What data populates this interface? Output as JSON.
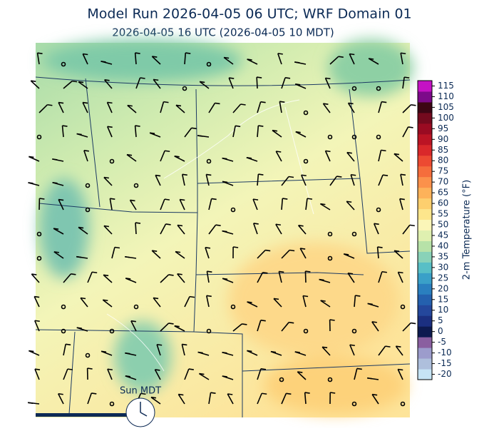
{
  "header": {
    "title": "Model Run 2026-04-05 06 UTC; WRF Domain 01",
    "subtitle": "2026-04-05 16 UTC  (2026-04-05 10 MDT)"
  },
  "colorbar": {
    "label": "2-m Temperature (°F)",
    "ticks": [
      -20,
      -15,
      -10,
      -5,
      0,
      5,
      10,
      15,
      20,
      25,
      30,
      35,
      40,
      45,
      50,
      55,
      60,
      65,
      70,
      75,
      80,
      85,
      90,
      95,
      100,
      105,
      110,
      115
    ],
    "colors": [
      "#c6e4f5",
      "#aebfdc",
      "#9c9ccc",
      "#8a5fa0",
      "#0d1a4f",
      "#1b2f80",
      "#24479c",
      "#2460ae",
      "#2a7fbf",
      "#3aa0c8",
      "#58bfc6",
      "#89d2b8",
      "#b7e2a8",
      "#dff0b0",
      "#fbf6b8",
      "#fde68c",
      "#fdcf6e",
      "#fdb25a",
      "#fb914b",
      "#f56d3c",
      "#ec4a32",
      "#d9282a",
      "#bb1424",
      "#9a0b22",
      "#740a1e",
      "#3d0614",
      "#7c0a8a",
      "#c412c4"
    ]
  },
  "clock": {
    "label": "Sun MDT"
  }
}
